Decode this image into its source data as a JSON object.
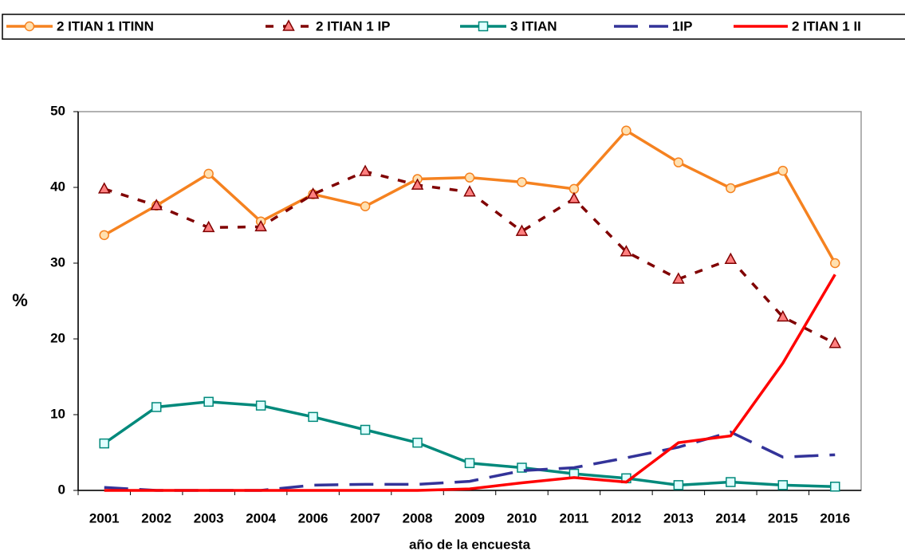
{
  "chart_data": {
    "type": "line",
    "x_label": "año de la encuesta",
    "y_label": "%",
    "categories": [
      "2001",
      "2002",
      "2003",
      "2004",
      "2006",
      "2007",
      "2008",
      "2009",
      "2010",
      "2011",
      "2012",
      "2013",
      "2014",
      "2015",
      "2016"
    ],
    "ylim": [
      0,
      50
    ],
    "yticks": [
      0,
      10,
      20,
      30,
      40,
      50
    ],
    "grid": false,
    "legend": "top",
    "series": [
      {
        "name": "2 ITIAN 1 ITINN",
        "color": "#f58220",
        "dash": false,
        "marker": "circle",
        "values": [
          33.7,
          37.6,
          41.8,
          35.5,
          39.1,
          37.5,
          41.1,
          41.3,
          40.7,
          39.8,
          47.5,
          43.3,
          39.9,
          42.2,
          30.0
        ]
      },
      {
        "name": "2 ITIAN 1 IP",
        "color": "#800000",
        "dash": true,
        "marker": "triangle",
        "values": [
          39.8,
          37.6,
          34.7,
          34.8,
          39.1,
          42.1,
          40.3,
          39.4,
          34.2,
          38.5,
          31.5,
          27.9,
          30.5,
          22.9,
          19.4
        ]
      },
      {
        "name": "3 ITIAN",
        "color": "#00897b",
        "dash": false,
        "marker": "square",
        "values": [
          6.2,
          11.0,
          11.7,
          11.2,
          9.7,
          8.0,
          6.3,
          3.6,
          3.0,
          2.2,
          1.6,
          0.7,
          1.1,
          0.7,
          0.5
        ]
      },
      {
        "name": "1IP",
        "color": "#333399",
        "dash": true,
        "marker": "none",
        "values": [
          0.4,
          0,
          0,
          0,
          0.7,
          0.8,
          0.8,
          1.2,
          2.6,
          3.0,
          4.3,
          5.7,
          7.7,
          4.4,
          4.7
        ]
      },
      {
        "name": "2 ITIAN 1 II",
        "color": "#ff0000",
        "dash": false,
        "marker": "none",
        "values": [
          0,
          0,
          0,
          0,
          0,
          0,
          0,
          0.2,
          1.0,
          1.7,
          1.1,
          6.3,
          7.2,
          16.8,
          28.5
        ]
      }
    ]
  }
}
